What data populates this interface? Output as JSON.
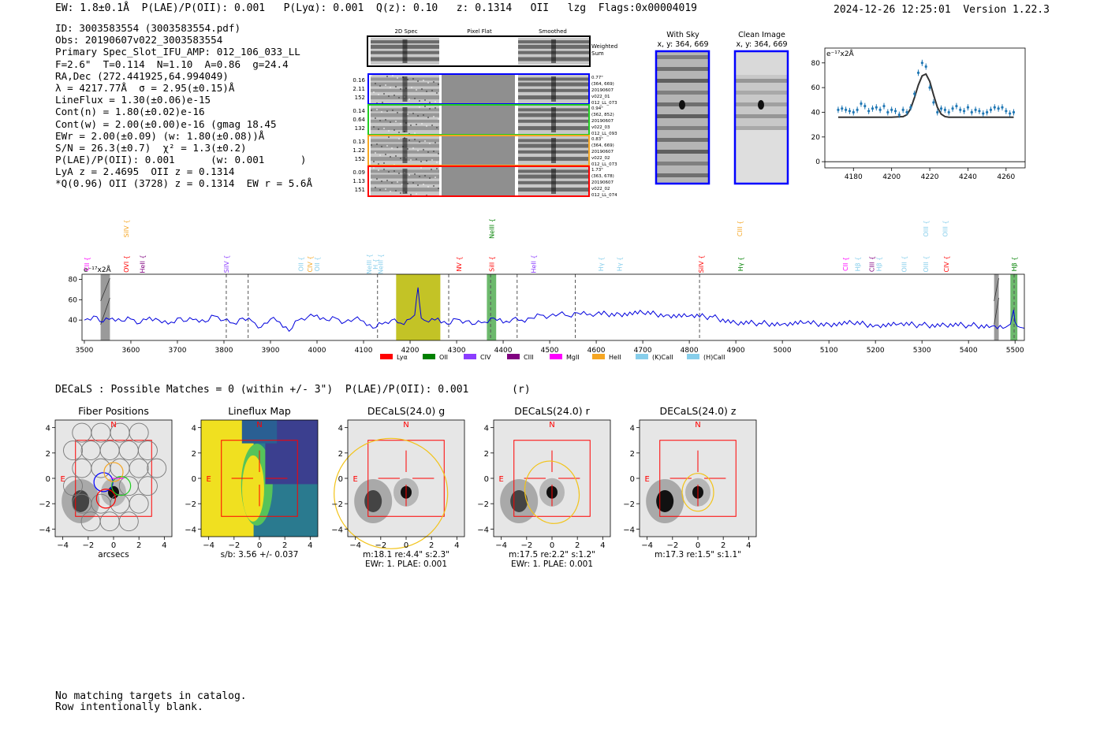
{
  "header": {
    "left": "EW: 1.8±0.1Å  P(LAE)/P(OII): 0.001   P(Lyα): 0.001  Q(z): 0.10   z: 0.1314   OII   lzg  Flags:0x00004019",
    "right": "2024-12-26 12:25:01  Version 1.22.3"
  },
  "info_lines": [
    "ID: 3003583554 (3003583554.pdf)",
    "Obs: 20190607v022_3003583554",
    "Primary Spec_Slot_IFU_AMP: 012_106_033_LL",
    "F=2.6\"  T=0.114  N=1.10  A=0.86  g=24.4",
    "RA,Dec (272.441925,64.994049)",
    "λ = 4217.77Å  σ = 2.95(±0.15)Å",
    "LineFlux = 1.30(±0.06)e-15",
    "Cont(n) = 1.80(±0.02)e-16",
    "Cont(w) = 2.00(±0.00)e-16 (gmag 18.45",
    "EWr = 2.00(±0.09) (w: 1.80(±0.08))Å",
    "S/N = 26.3(±0.7)  χ² = 1.3(±0.2)",
    "P(LAE)/P(OII): 0.001      (w: 0.001      )",
    "LyA z = 2.4695  OII z = 0.1314",
    "*Q(0.96) OII (3728) z = 0.1314  EW r = 5.6Å"
  ],
  "spec2d": {
    "col_labels": [
      "2D Spec",
      "Pixel Flat",
      "Smoothed"
    ],
    "weighted_label": "Weighted Sum",
    "rows": [
      {
        "left": [
          "0.16",
          "2.11",
          "152"
        ],
        "right": [
          "0.77\"",
          "(364, 669)",
          "20190607",
          "v022_01",
          "012_LL_073"
        ],
        "color": "#0000ff"
      },
      {
        "left": [
          "0.14",
          "0.64",
          "132"
        ],
        "right": [
          "0.94\"",
          "(362, 852)",
          "20190607",
          "v022_03",
          "012_LL_093"
        ],
        "color": "#22cc22"
      },
      {
        "left": [
          "0.13",
          "1.22",
          "152"
        ],
        "right": [
          "0.83\"",
          "(364, 669)",
          "20190607",
          "v022_02",
          "012_LL_073"
        ],
        "color": "#f5a623"
      },
      {
        "left": [
          "0.09",
          "1.13",
          "151"
        ],
        "right": [
          "1.73\"",
          "(363, 678)",
          "20190607",
          "v022_02",
          "012_LL_074"
        ],
        "color": "#ff0000"
      }
    ]
  },
  "cutouts": [
    {
      "title": "With Sky",
      "coords": "x, y: 364, 669"
    },
    {
      "title": "Clean Image",
      "coords": "x, y: 364, 669"
    }
  ],
  "zoom_chart": {
    "type": "scatter",
    "unit_label": "e⁻¹⁷x2Å",
    "xlim": [
      4165,
      4270
    ],
    "ylim": [
      -5,
      92
    ],
    "xticks": [
      4180,
      4200,
      4220,
      4240,
      4260
    ],
    "yticks": [
      0,
      20,
      40,
      60,
      80
    ],
    "x": [
      4172,
      4174,
      4176,
      4178,
      4180,
      4182,
      4184,
      4186,
      4188,
      4190,
      4192,
      4194,
      4196,
      4198,
      4200,
      4202,
      4204,
      4206,
      4208,
      4210,
      4212,
      4214,
      4216,
      4218,
      4220,
      4222,
      4224,
      4226,
      4228,
      4230,
      4232,
      4234,
      4236,
      4238,
      4240,
      4242,
      4244,
      4246,
      4248,
      4250,
      4252,
      4254,
      4256,
      4258,
      4260,
      4262,
      4264
    ],
    "y": [
      42,
      43,
      42,
      41,
      40,
      42,
      47,
      45,
      41,
      43,
      44,
      42,
      45,
      40,
      42,
      41,
      38,
      42,
      40,
      44,
      55,
      72,
      80,
      77,
      60,
      48,
      40,
      43,
      42,
      40,
      43,
      45,
      42,
      41,
      44,
      40,
      42,
      41,
      39,
      40,
      42,
      44,
      43,
      44,
      41,
      39,
      40
    ],
    "model_x": [
      4172,
      4200,
      4206,
      4208,
      4210,
      4212,
      4214,
      4216,
      4218,
      4220,
      4222,
      4224,
      4226,
      4228,
      4230,
      4264
    ],
    "model_y": [
      36,
      36,
      36.5,
      38,
      43,
      52,
      62,
      69.5,
      71,
      65,
      54,
      44,
      38.5,
      36.5,
      36,
      36
    ]
  },
  "spectrum": {
    "unit_label": "e⁻¹⁷x2Å",
    "xlim": [
      3495,
      5520
    ],
    "ylim": [
      20,
      85
    ],
    "xticks": [
      3500,
      3600,
      3700,
      3800,
      3900,
      4000,
      4100,
      4200,
      4300,
      4400,
      4500,
      4600,
      4700,
      4800,
      4900,
      5000,
      5100,
      5200,
      5300,
      5400,
      5500
    ],
    "yticks": [
      40,
      60,
      80
    ],
    "x": [
      3500,
      3520,
      3540,
      3560,
      3580,
      3600,
      3620,
      3640,
      3660,
      3680,
      3700,
      3720,
      3740,
      3760,
      3780,
      3800,
      3820,
      3840,
      3860,
      3880,
      3900,
      3920,
      3940,
      3960,
      3980,
      4000,
      4020,
      4040,
      4060,
      4080,
      4100,
      4120,
      4140,
      4160,
      4180,
      4200,
      4210,
      4214,
      4217,
      4220,
      4224,
      4230,
      4240,
      4260,
      4280,
      4300,
      4320,
      4340,
      4360,
      4380,
      4400,
      4420,
      4440,
      4460,
      4480,
      4500,
      4520,
      4540,
      4560,
      4580,
      4600,
      4650,
      4700,
      4750,
      4800,
      4850,
      4900,
      4950,
      5000,
      5050,
      5100,
      5150,
      5200,
      5250,
      5300,
      5350,
      5400,
      5450,
      5480,
      5490,
      5497,
      5500,
      5505,
      5510,
      5520
    ],
    "y": [
      40,
      44,
      38,
      42,
      39,
      41,
      37,
      43,
      40,
      36,
      42,
      39,
      41,
      38,
      44,
      40,
      37,
      42,
      39,
      33,
      41,
      38,
      29,
      40,
      43,
      45,
      40,
      42,
      38,
      41,
      39,
      32,
      36,
      40,
      37,
      41,
      45,
      62,
      72,
      58,
      42,
      40,
      38,
      42,
      36,
      41,
      39,
      36,
      38,
      42,
      37,
      41,
      40,
      42,
      45,
      44,
      46,
      44,
      47,
      45,
      46,
      46,
      47,
      45,
      44,
      43,
      37,
      37,
      36,
      37,
      36,
      37,
      35,
      36,
      35,
      35,
      35,
      34,
      33,
      36,
      50,
      38,
      34,
      33,
      32
    ],
    "lines": [
      {
        "name": "CII",
        "color": "#ff00ff",
        "row": "low",
        "wave": 3505
      },
      {
        "name": "SiIV",
        "color": "#f5a623",
        "row": "high",
        "wave": 3590
      },
      {
        "name": "OVI",
        "color": "#ff0000",
        "row": "low",
        "wave": 3590
      },
      {
        "name": "HeII",
        "color": "#800080",
        "row": "low",
        "wave": 3625
      },
      {
        "name": "SiIV",
        "color": "#8b3dff",
        "row": "low",
        "wave": 3805
      },
      {
        "name": "OII",
        "color": "#87ceeb",
        "row": "low",
        "wave": 3965
      },
      {
        "name": "CIV",
        "color": "#f5a623",
        "row": "low",
        "wave": 3985
      },
      {
        "name": "OII",
        "color": "#87ceeb",
        "row": "low",
        "wave": 4000
      },
      {
        "name": "NeIII",
        "color": "#87ceeb",
        "row": "low",
        "wave": 4112
      },
      {
        "name": "H",
        "color": "#87ceeb",
        "row": "low",
        "wave": 4125
      },
      {
        "name": "NeIII",
        "color": "#87ceeb",
        "row": "low",
        "wave": 4136
      },
      {
        "name": "NeIII",
        "color": "#008000",
        "row": "high",
        "wave": 4375
      },
      {
        "name": "NV",
        "color": "#ff0000",
        "row": "low",
        "wave": 4305
      },
      {
        "name": "SiII",
        "color": "#ff0000",
        "row": "low",
        "wave": 4375
      },
      {
        "name": "HeII",
        "color": "#8b3dff",
        "row": "low",
        "wave": 4465
      },
      {
        "name": "Hγ",
        "color": "#87ceeb",
        "row": "low",
        "wave": 4610
      },
      {
        "name": "Hγ",
        "color": "#87ceeb",
        "row": "low",
        "wave": 4650
      },
      {
        "name": "SiIV",
        "color": "#ff0000",
        "row": "low",
        "wave": 4825
      },
      {
        "name": "CIII",
        "color": "#f5a623",
        "row": "high",
        "wave": 4908
      },
      {
        "name": "Hγ",
        "color": "#008000",
        "row": "low",
        "wave": 4910
      },
      {
        "name": "CII",
        "color": "#ff00ff",
        "row": "low",
        "wave": 5135
      },
      {
        "name": "Hβ",
        "color": "#87ceeb",
        "row": "low",
        "wave": 5162
      },
      {
        "name": "CIII",
        "color": "#800080",
        "row": "low",
        "wave": 5192
      },
      {
        "name": "Hβ",
        "color": "#87ceeb",
        "row": "low",
        "wave": 5207
      },
      {
        "name": "OIII",
        "color": "#87ceeb",
        "row": "low",
        "wave": 5262
      },
      {
        "name": "OIII",
        "color": "#87ceeb",
        "row": "high",
        "wave": 5308
      },
      {
        "name": "OIII",
        "color": "#87ceeb",
        "row": "low",
        "wave": 5308
      },
      {
        "name": "OIII",
        "color": "#87ceeb",
        "row": "high",
        "wave": 5350
      },
      {
        "name": "CIV",
        "color": "#ff0000",
        "row": "low",
        "wave": 5352
      },
      {
        "name": "Hβ",
        "color": "#008000",
        "row": "low",
        "wave": 5498
      }
    ],
    "dashed": [
      3805,
      3852,
      4130,
      4283,
      4373,
      4430,
      4555,
      4822,
      5498
    ],
    "legend": [
      {
        "label": "Lyα",
        "color": "#ff0000"
      },
      {
        "label": "OII",
        "color": "#008000"
      },
      {
        "label": "CIV",
        "color": "#8b3dff"
      },
      {
        "label": "CIII",
        "color": "#800080"
      },
      {
        "label": "MgII",
        "color": "#ff00ff"
      },
      {
        "label": "HeII",
        "color": "#f5a623"
      },
      {
        "label": "(K)CaII",
        "color": "#87ceeb"
      },
      {
        "label": "(H)CaII",
        "color": "#87ceeb"
      }
    ]
  },
  "decals_line": "DECaLS : Possible Matches = 0 (within +/- 3\")  P(LAE)/P(OII): 0.001       (r)",
  "panels": [
    {
      "title": "Fiber Positions",
      "xlabel": "arcsecs",
      "caption": [],
      "type": "fibers"
    },
    {
      "title": "Lineflux Map",
      "xlabel": "",
      "caption": [
        "s/b: 3.56 +/- 0.037"
      ],
      "type": "lineflux"
    },
    {
      "title": "DECaLS(24.0) g",
      "xlabel": "",
      "caption": [
        "m:18.1   re:4.4\"  s:2.3\"",
        "EWr: 1. PLAE: 0.001"
      ],
      "type": "g"
    },
    {
      "title": "DECaLS(24.0) r",
      "xlabel": "",
      "caption": [
        "m:17.5  re:2.2\"  s:1.2\"",
        "EWr: 1. PLAE: 0.001"
      ],
      "type": "r"
    },
    {
      "title": "DECaLS(24.0) z",
      "xlabel": "",
      "caption": [
        "m:17.3  re:1.5\"  s:1.1\""
      ],
      "type": "z"
    }
  ],
  "panel_axis": {
    "ticks": [
      -4,
      -2,
      0,
      2,
      4
    ],
    "N": "N",
    "E": "E"
  },
  "footer": [
    "No matching targets in catalog.",
    "Row intentionally blank."
  ]
}
